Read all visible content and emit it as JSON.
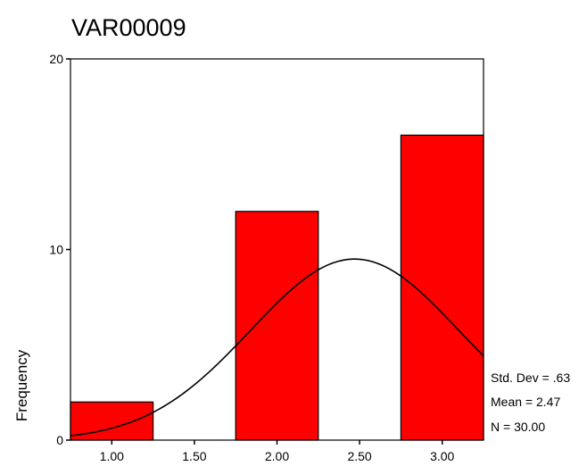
{
  "chart_data": {
    "type": "bar",
    "title": "VAR00009",
    "xlabel": "",
    "ylabel": "Frequency",
    "xlim": [
      0.75,
      3.25
    ],
    "ylim": [
      0,
      20
    ],
    "x_ticks": [
      "1.00",
      "1.50",
      "2.00",
      "2.50",
      "3.00"
    ],
    "x_tick_values": [
      1.0,
      1.5,
      2.0,
      2.5,
      3.0
    ],
    "y_ticks": [
      "0",
      "10",
      "20"
    ],
    "y_tick_values": [
      0,
      10,
      20
    ],
    "bin_width": 0.5,
    "bars": [
      {
        "center": 1.0,
        "value": 2
      },
      {
        "center": 1.5,
        "value": 0
      },
      {
        "center": 2.0,
        "value": 12
      },
      {
        "center": 2.5,
        "value": 0
      },
      {
        "center": 3.0,
        "value": 16
      }
    ],
    "normal_curve": {
      "mean": 2.47,
      "std_dev": 0.63,
      "n": 30
    },
    "bar_color": "#ff0000",
    "grid": false,
    "stats": {
      "std_dev": "Std. Dev = .63",
      "mean": "Mean = 2.47",
      "n": "N = 30.00"
    }
  }
}
